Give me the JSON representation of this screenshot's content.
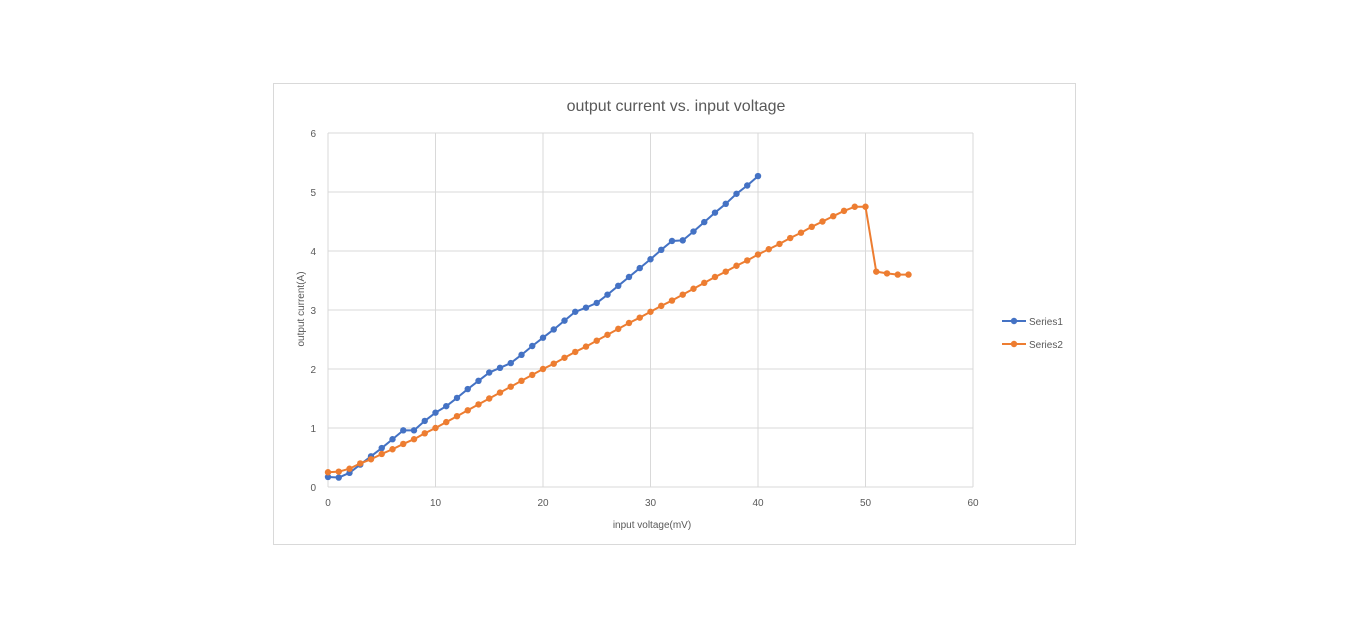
{
  "chart_data": {
    "type": "line",
    "title": "output current vs. input voltage",
    "xlabel": "input voltage(mV)",
    "ylabel": "output current(A)",
    "xlim": [
      0,
      60
    ],
    "ylim": [
      0,
      6
    ],
    "x_ticks": [
      "0",
      "10",
      "20",
      "30",
      "40",
      "50",
      "60"
    ],
    "y_ticks": [
      "0",
      "1",
      "2",
      "3",
      "4",
      "5",
      "6"
    ],
    "grid": true,
    "legend_position": "right",
    "series": [
      {
        "name": "Series1",
        "color": "#4472c4",
        "x": [
          0,
          1,
          2,
          3,
          4,
          5,
          6,
          7,
          8,
          9,
          10,
          11,
          12,
          13,
          14,
          15,
          16,
          17,
          18,
          19,
          20,
          21,
          22,
          23,
          24,
          25,
          26,
          27,
          28,
          29,
          30,
          31,
          32,
          33,
          34,
          35,
          36,
          37,
          38,
          39,
          40
        ],
        "y": [
          0.17,
          0.16,
          0.24,
          0.38,
          0.52,
          0.66,
          0.81,
          0.96,
          0.96,
          1.12,
          1.26,
          1.37,
          1.51,
          1.66,
          1.8,
          1.94,
          2.02,
          2.1,
          2.24,
          2.39,
          2.53,
          2.67,
          2.82,
          2.97,
          3.04,
          3.12,
          3.26,
          3.41,
          3.56,
          3.71,
          3.86,
          4.02,
          4.17,
          4.18,
          4.33,
          4.49,
          4.65,
          4.8,
          4.97,
          5.11,
          5.27
        ]
      },
      {
        "name": "Series2",
        "color": "#ed7d31",
        "x": [
          0,
          1,
          2,
          3,
          4,
          5,
          6,
          7,
          8,
          9,
          10,
          11,
          12,
          13,
          14,
          15,
          16,
          17,
          18,
          19,
          20,
          21,
          22,
          23,
          24,
          25,
          26,
          27,
          28,
          29,
          30,
          31,
          32,
          33,
          34,
          35,
          36,
          37,
          38,
          39,
          40,
          41,
          42,
          43,
          44,
          45,
          46,
          47,
          48,
          49,
          50,
          51,
          52,
          53,
          54
        ],
        "y": [
          0.25,
          0.26,
          0.31,
          0.4,
          0.47,
          0.56,
          0.64,
          0.73,
          0.81,
          0.91,
          1.0,
          1.1,
          1.2,
          1.3,
          1.4,
          1.5,
          1.6,
          1.7,
          1.8,
          1.9,
          2.0,
          2.09,
          2.19,
          2.29,
          2.38,
          2.48,
          2.58,
          2.68,
          2.78,
          2.87,
          2.97,
          3.07,
          3.16,
          3.26,
          3.36,
          3.46,
          3.56,
          3.65,
          3.75,
          3.84,
          3.94,
          4.03,
          4.12,
          4.22,
          4.31,
          4.41,
          4.5,
          4.59,
          4.68,
          4.75,
          4.75,
          3.65,
          3.62,
          3.6,
          3.6
        ]
      }
    ]
  }
}
